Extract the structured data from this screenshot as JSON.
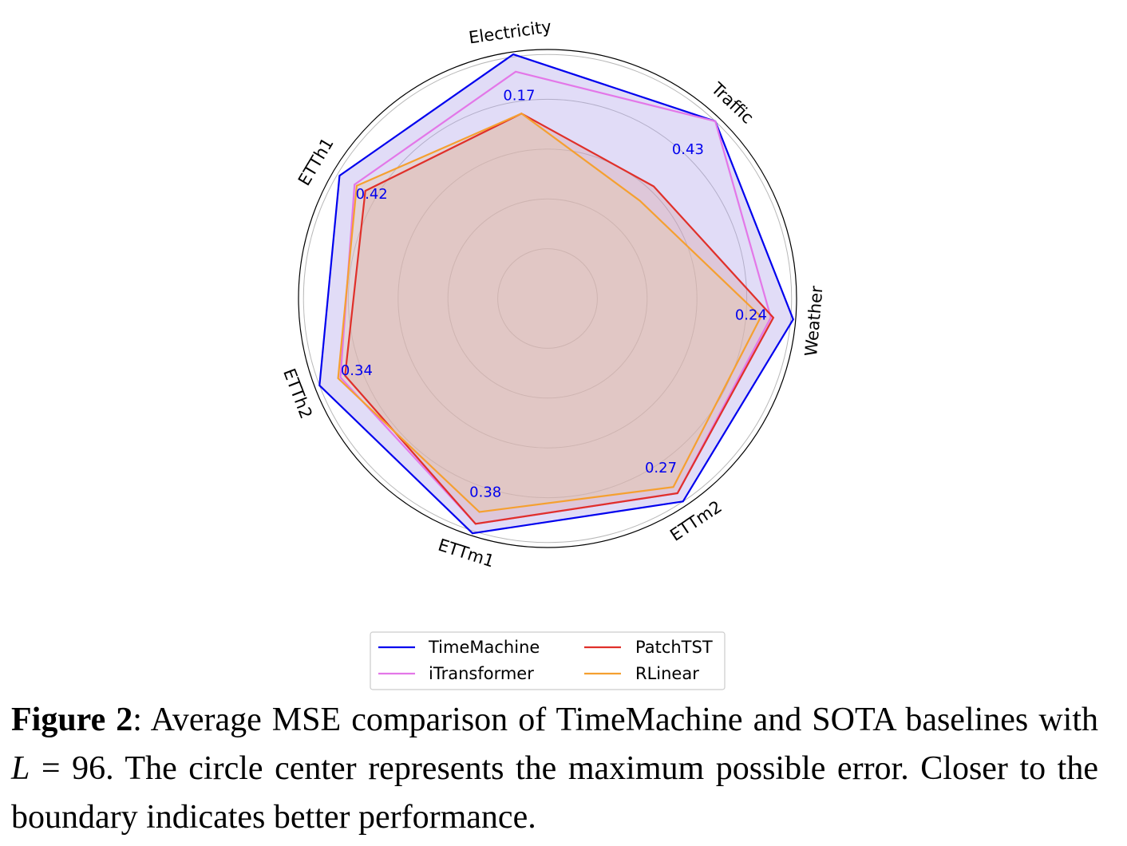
{
  "chart_data": {
    "type": "radar",
    "axes": [
      "Electricity",
      "Traffic",
      "Weather",
      "ETTm2",
      "ETTm1",
      "ETTh2",
      "ETTh1"
    ],
    "annotations": [
      "0.17",
      "0.43",
      "0.24",
      "0.27",
      "0.38",
      "0.34",
      "0.42"
    ],
    "rlim": [
      0,
      1
    ],
    "grid": true,
    "legend_position": "bottom-center",
    "series": [
      {
        "name": "TimeMachine",
        "color": "#0000ee",
        "filled": true,
        "fill_color": "#a99be8",
        "values": [
          0.99,
          0.98,
          0.99,
          0.98,
          0.99,
          0.98,
          0.97
        ]
      },
      {
        "name": "iTransformer",
        "color": "#e377e8",
        "filled": false,
        "values": [
          0.92,
          0.98,
          0.9,
          0.94,
          0.95,
          0.89,
          0.9
        ]
      },
      {
        "name": "PatchTST",
        "color": "#e0302a",
        "filled": true,
        "fill_color": "#d9a0a0",
        "values": [
          0.75,
          0.62,
          0.91,
          0.94,
          0.95,
          0.87,
          0.85
        ]
      },
      {
        "name": "RLinear",
        "color": "#f5a030",
        "filled": true,
        "fill_color": "#e8c8a0",
        "values": [
          0.75,
          0.54,
          0.86,
          0.91,
          0.9,
          0.9,
          0.89
        ]
      }
    ]
  },
  "caption": {
    "label": "Figure 2",
    "text_1": ": Average MSE comparison of TimeMachine and SOTA baselines with ",
    "math_var": "L",
    "math_eq": " = 96",
    "text_2": ". The circle center represents the maximum possible error. Closer to the boundary indicates better performance."
  }
}
